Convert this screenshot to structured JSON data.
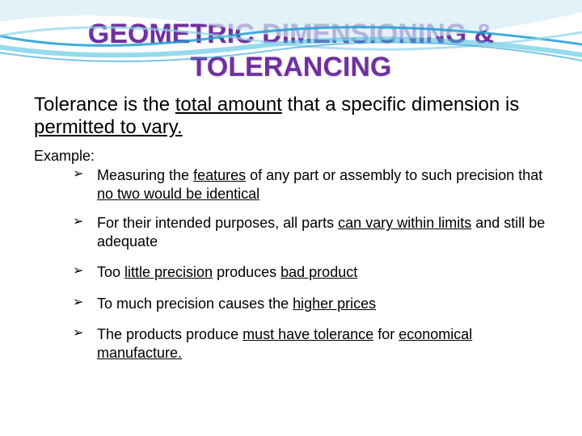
{
  "title": "GEOMETRIC DIMENSIONING & TOLERANCING",
  "intro_pre": "Tolerance is the ",
  "intro_u1": "total amount",
  "intro_mid": " that a specific dimension is ",
  "intro_u2": "permitted to vary.",
  "example_label": "Example:",
  "bullets": [
    {
      "parts": [
        {
          "t": "Measuring the ",
          "u": false
        },
        {
          "t": "features",
          "u": true
        },
        {
          "t": " of any part or assembly to such precision that ",
          "u": false
        },
        {
          "t": "no two would be identical",
          "u": true
        }
      ]
    },
    {
      "parts": [
        {
          "t": "For their intended purposes, all parts ",
          "u": false
        },
        {
          "t": "can vary within limits",
          "u": true
        },
        {
          "t": " and still be adequate",
          "u": false
        }
      ]
    },
    {
      "parts": [
        {
          "t": "Too ",
          "u": false
        },
        {
          "t": "little precision",
          "u": true
        },
        {
          "t": " produces ",
          "u": false
        },
        {
          "t": "bad product",
          "u": true
        }
      ]
    },
    {
      "parts": [
        {
          "t": "To much precision causes the ",
          "u": false
        },
        {
          "t": "higher prices",
          "u": true
        }
      ]
    },
    {
      "parts": [
        {
          "t": "The products produce ",
          "u": false
        },
        {
          "t": "must have tolerance",
          "u": true
        },
        {
          "t": " for ",
          "u": false
        },
        {
          "t": "economical manufacture.",
          "u": true
        }
      ]
    }
  ],
  "colors": {
    "title": "#7030a0",
    "wave_primary": "#1f9fd6",
    "wave_light": "#8fd3e8",
    "wave_accent": "#3fbce0",
    "underline": "#000000",
    "background": "#ffffff"
  },
  "fonts": {
    "title_size_pt": 26,
    "intro_size_pt": 18,
    "body_size_pt": 14
  }
}
